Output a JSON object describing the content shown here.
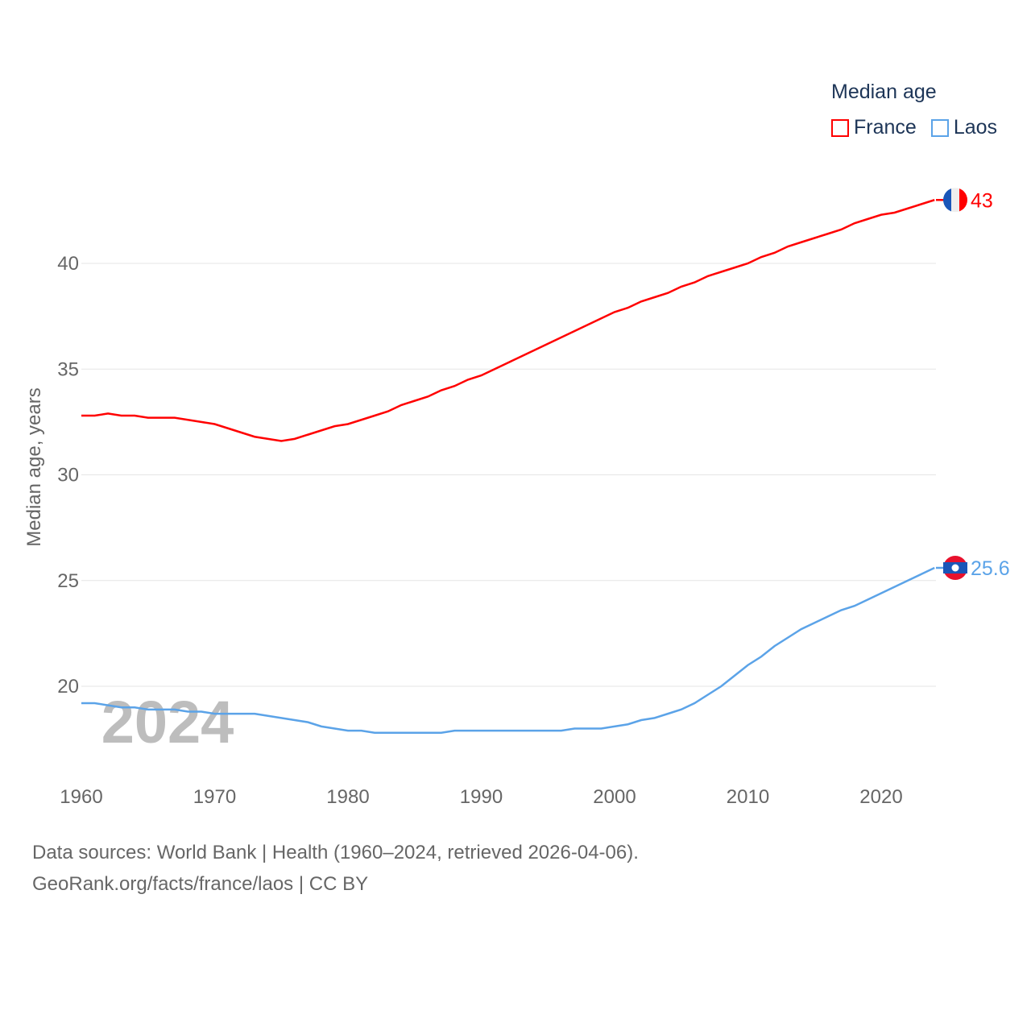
{
  "chart_data": {
    "type": "line",
    "title": "Median age",
    "ylabel": "Median age, years",
    "xlabel": "",
    "xlim": [
      1960,
      2024
    ],
    "ylim": [
      16.5,
      45.5
    ],
    "yticks": [
      20,
      25,
      30,
      35,
      40
    ],
    "xticks": [
      1960,
      1970,
      1980,
      1990,
      2000,
      2010,
      2020
    ],
    "grid": true,
    "legend_position": "top-right",
    "year_watermark": "2024",
    "x": [
      1960,
      1961,
      1962,
      1963,
      1964,
      1965,
      1966,
      1967,
      1968,
      1969,
      1970,
      1971,
      1972,
      1973,
      1974,
      1975,
      1976,
      1977,
      1978,
      1979,
      1980,
      1981,
      1982,
      1983,
      1984,
      1985,
      1986,
      1987,
      1988,
      1989,
      1990,
      1991,
      1992,
      1993,
      1994,
      1995,
      1996,
      1997,
      1998,
      1999,
      2000,
      2001,
      2002,
      2003,
      2004,
      2005,
      2006,
      2007,
      2008,
      2009,
      2010,
      2011,
      2012,
      2013,
      2014,
      2015,
      2016,
      2017,
      2018,
      2019,
      2020,
      2021,
      2022,
      2023,
      2024
    ],
    "series": [
      {
        "name": "France",
        "color": "#ff0000",
        "end_label": "43",
        "values": [
          32.8,
          32.8,
          32.9,
          32.8,
          32.8,
          32.7,
          32.7,
          32.7,
          32.6,
          32.5,
          32.4,
          32.2,
          32.0,
          31.8,
          31.7,
          31.6,
          31.7,
          31.9,
          32.1,
          32.3,
          32.4,
          32.6,
          32.8,
          33.0,
          33.3,
          33.5,
          33.7,
          34.0,
          34.2,
          34.5,
          34.7,
          35.0,
          35.3,
          35.6,
          35.9,
          36.2,
          36.5,
          36.8,
          37.1,
          37.4,
          37.7,
          37.9,
          38.2,
          38.4,
          38.6,
          38.9,
          39.1,
          39.4,
          39.6,
          39.8,
          40.0,
          40.3,
          40.5,
          40.8,
          41.0,
          41.2,
          41.4,
          41.6,
          41.9,
          42.1,
          42.3,
          42.4,
          42.6,
          42.8,
          43.0
        ]
      },
      {
        "name": "Laos",
        "color": "#5ba3e8",
        "end_label": "25.6",
        "values": [
          19.2,
          19.2,
          19.1,
          19.0,
          19.0,
          18.9,
          18.9,
          18.9,
          18.8,
          18.8,
          18.7,
          18.7,
          18.7,
          18.7,
          18.6,
          18.5,
          18.4,
          18.3,
          18.1,
          18.0,
          17.9,
          17.9,
          17.8,
          17.8,
          17.8,
          17.8,
          17.8,
          17.8,
          17.9,
          17.9,
          17.9,
          17.9,
          17.9,
          17.9,
          17.9,
          17.9,
          17.9,
          18.0,
          18.0,
          18.0,
          18.1,
          18.2,
          18.4,
          18.5,
          18.7,
          18.9,
          19.2,
          19.6,
          20.0,
          20.5,
          21.0,
          21.4,
          21.9,
          22.3,
          22.7,
          23.0,
          23.3,
          23.6,
          23.8,
          24.1,
          24.4,
          24.7,
          25.0,
          25.3,
          25.6
        ]
      }
    ]
  },
  "footer": {
    "line1": "Data sources: World Bank | Health (1960–2024, retrieved 2026-04-06).",
    "line2": "GeoRank.org/facts/france/laos | CC BY"
  }
}
